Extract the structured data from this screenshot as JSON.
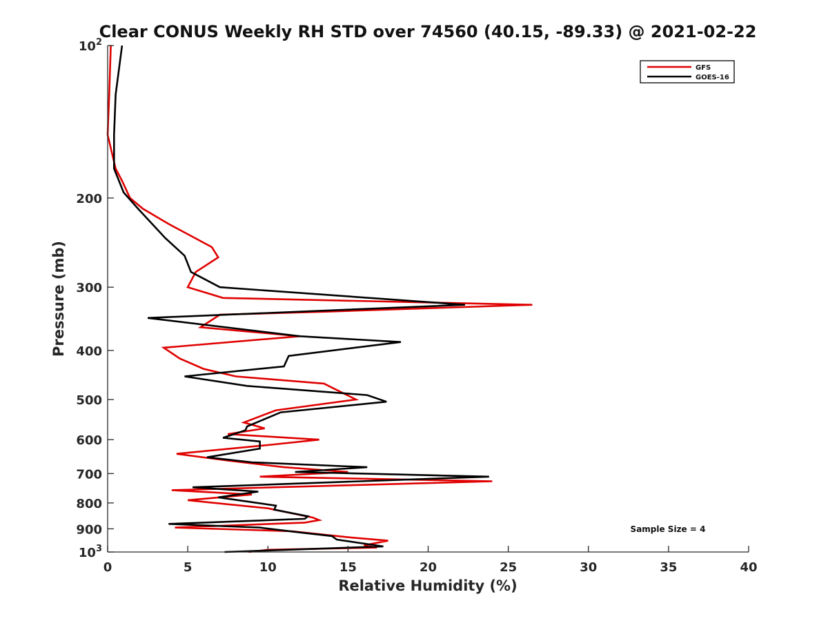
{
  "chart_data": {
    "type": "line",
    "title": "Clear CONUS Weekly RH STD over 74560 (40.15, -89.33) @ 2021-02-22",
    "xlabel": "Relative Humidity (%)",
    "ylabel": "Pressure (mb)",
    "xlim": [
      0,
      40
    ],
    "ylim": [
      100,
      1000
    ],
    "y_scale": "log",
    "y_reversed": true,
    "grid": false,
    "legend": "top-right",
    "xticks": [
      0,
      5,
      10,
      15,
      20,
      25,
      30,
      35,
      40
    ],
    "yticks": [
      {
        "value": 100,
        "label": "10",
        "sup": "2"
      },
      {
        "value": 200,
        "label": "200",
        "sup": ""
      },
      {
        "value": 300,
        "label": "300",
        "sup": ""
      },
      {
        "value": 400,
        "label": "400",
        "sup": ""
      },
      {
        "value": 500,
        "label": "500",
        "sup": ""
      },
      {
        "value": 600,
        "label": "600",
        "sup": ""
      },
      {
        "value": 700,
        "label": "700",
        "sup": ""
      },
      {
        "value": 800,
        "label": "800",
        "sup": ""
      },
      {
        "value": 900,
        "label": "900",
        "sup": ""
      },
      {
        "value": 1000,
        "label": "10",
        "sup": "3"
      }
    ],
    "series": [
      {
        "name": "GFS",
        "color": "#e00000",
        "points": [
          [
            0.2,
            100
          ],
          [
            0.1,
            125
          ],
          [
            0.0,
            150
          ],
          [
            0.5,
            175
          ],
          [
            0.9,
            185
          ],
          [
            1.4,
            200
          ],
          [
            2.2,
            210
          ],
          [
            3.8,
            225
          ],
          [
            6.5,
            250
          ],
          [
            6.9,
            262
          ],
          [
            5.5,
            280
          ],
          [
            5.0,
            300
          ],
          [
            7.2,
            315
          ],
          [
            26.5,
            325
          ],
          [
            14.0,
            335
          ],
          [
            7.0,
            340
          ],
          [
            5.8,
            360
          ],
          [
            12.0,
            375
          ],
          [
            3.5,
            395
          ],
          [
            4.5,
            415
          ],
          [
            6.0,
            435
          ],
          [
            8.0,
            450
          ],
          [
            13.5,
            465
          ],
          [
            15.5,
            500
          ],
          [
            10.5,
            525
          ],
          [
            8.5,
            555
          ],
          [
            9.8,
            570
          ],
          [
            7.5,
            585
          ],
          [
            13.2,
            600
          ],
          [
            10.0,
            615
          ],
          [
            4.3,
            640
          ],
          [
            7.5,
            660
          ],
          [
            11.0,
            680
          ],
          [
            15.0,
            695
          ],
          [
            9.5,
            710
          ],
          [
            24.0,
            725
          ],
          [
            4.0,
            755
          ],
          [
            9.0,
            770
          ],
          [
            5.0,
            790
          ],
          [
            10.0,
            820
          ],
          [
            12.8,
            855
          ],
          [
            13.2,
            865
          ],
          [
            12.3,
            875
          ],
          [
            4.2,
            895
          ],
          [
            11.5,
            910
          ],
          [
            15.0,
            935
          ],
          [
            17.5,
            950
          ],
          [
            16.0,
            970
          ],
          [
            16.8,
            980
          ],
          [
            10.0,
            990
          ],
          [
            8.8,
            1000
          ]
        ]
      },
      {
        "name": "GOES-16",
        "color": "#000000",
        "points": [
          [
            0.9,
            100
          ],
          [
            0.5,
            125
          ],
          [
            0.4,
            150
          ],
          [
            0.4,
            175
          ],
          [
            1.0,
            195
          ],
          [
            1.9,
            210
          ],
          [
            3.6,
            240
          ],
          [
            4.8,
            260
          ],
          [
            5.2,
            280
          ],
          [
            7.0,
            300
          ],
          [
            22.3,
            325
          ],
          [
            2.5,
            345
          ],
          [
            12.0,
            375
          ],
          [
            18.3,
            385
          ],
          [
            11.3,
            410
          ],
          [
            11.0,
            430
          ],
          [
            4.8,
            450
          ],
          [
            8.7,
            470
          ],
          [
            16.2,
            490
          ],
          [
            17.4,
            505
          ],
          [
            10.8,
            530
          ],
          [
            8.7,
            565
          ],
          [
            8.6,
            575
          ],
          [
            7.2,
            595
          ],
          [
            9.5,
            605
          ],
          [
            9.5,
            625
          ],
          [
            6.2,
            650
          ],
          [
            9.0,
            665
          ],
          [
            16.2,
            680
          ],
          [
            11.7,
            695
          ],
          [
            23.8,
            710
          ],
          [
            5.3,
            745
          ],
          [
            9.4,
            760
          ],
          [
            6.9,
            780
          ],
          [
            10.5,
            810
          ],
          [
            10.4,
            825
          ],
          [
            12.5,
            850
          ],
          [
            12.3,
            860
          ],
          [
            3.8,
            880
          ],
          [
            9.5,
            895
          ],
          [
            12.0,
            915
          ],
          [
            14.0,
            930
          ],
          [
            14.3,
            945
          ],
          [
            17.2,
            975
          ],
          [
            7.3,
            1000
          ]
        ]
      }
    ],
    "annotations": [
      "Sample Size = 4"
    ]
  }
}
